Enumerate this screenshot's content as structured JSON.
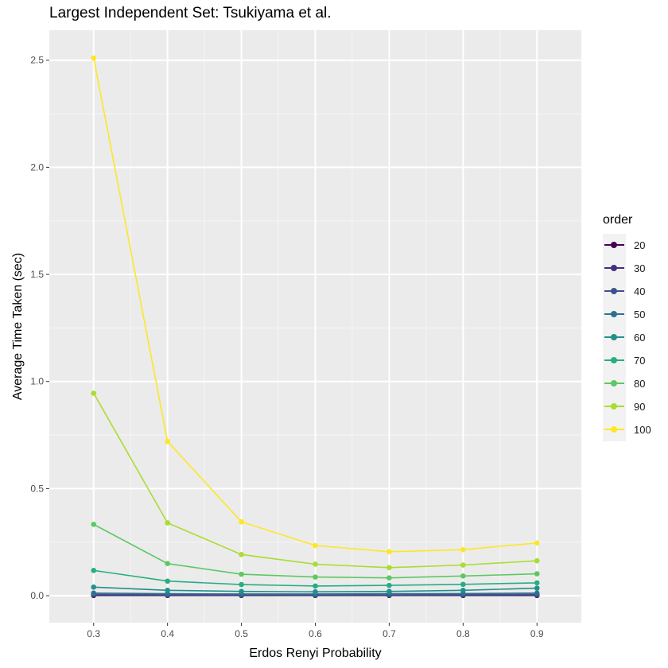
{
  "chart_data": {
    "type": "line",
    "title": "Largest Independent Set: Tsukiyama et al.",
    "xlabel": "Erdos Renyi Probability",
    "ylabel": "Average Time Taken (sec)",
    "x": [
      0.3,
      0.4,
      0.5,
      0.6,
      0.7,
      0.8,
      0.9
    ],
    "x_ticks": [
      "0.3",
      "0.4",
      "0.5",
      "0.6",
      "0.7",
      "0.8",
      "0.9"
    ],
    "y_ticks": [
      "0.0",
      "0.5",
      "1.0",
      "1.5",
      "2.0",
      "2.5"
    ],
    "xlim": [
      0.24,
      0.96
    ],
    "ylim": [
      -0.126,
      2.64
    ],
    "grid": true,
    "legend_title": "order",
    "legend_position": "right",
    "series": [
      {
        "name": "20",
        "color": "#440154",
        "values": [
          0.001,
          0.001,
          0.001,
          0.001,
          0.001,
          0.001,
          0.001
        ]
      },
      {
        "name": "30",
        "color": "#472D7B",
        "values": [
          0.003,
          0.002,
          0.002,
          0.002,
          0.002,
          0.002,
          0.003
        ]
      },
      {
        "name": "40",
        "color": "#3B528B",
        "values": [
          0.006,
          0.005,
          0.004,
          0.004,
          0.004,
          0.005,
          0.006
        ]
      },
      {
        "name": "50",
        "color": "#2C728E",
        "values": [
          0.012,
          0.009,
          0.008,
          0.008,
          0.009,
          0.01,
          0.012
        ]
      },
      {
        "name": "60",
        "color": "#21908C",
        "values": [
          0.04,
          0.025,
          0.02,
          0.018,
          0.02,
          0.025,
          0.035
        ]
      },
      {
        "name": "70",
        "color": "#27AD81",
        "values": [
          0.118,
          0.068,
          0.052,
          0.045,
          0.048,
          0.053,
          0.06
        ]
      },
      {
        "name": "80",
        "color": "#5DC863",
        "values": [
          0.333,
          0.15,
          0.1,
          0.087,
          0.083,
          0.092,
          0.102
        ]
      },
      {
        "name": "90",
        "color": "#AADC32",
        "values": [
          0.945,
          0.34,
          0.192,
          0.147,
          0.131,
          0.143,
          0.163
        ]
      },
      {
        "name": "100",
        "color": "#FDE725",
        "values": [
          2.51,
          0.72,
          0.345,
          0.234,
          0.205,
          0.215,
          0.246
        ]
      }
    ]
  }
}
